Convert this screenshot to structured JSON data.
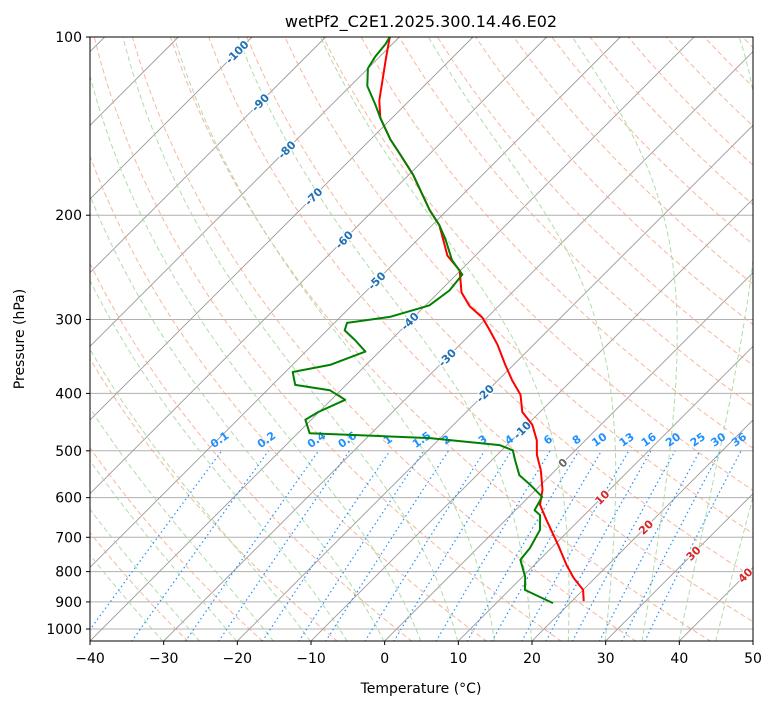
{
  "chart_data": {
    "type": "line",
    "subtype": "skew-t log-p",
    "title": "wetPf2_C2E1.2025.300.14.46.E02",
    "xlabel": "Temperature (°C)",
    "ylabel": "Pressure (hPa)",
    "xlim": [
      -40,
      50
    ],
    "ylim": [
      1050,
      100
    ],
    "x_ticks": [
      -40,
      -30,
      -20,
      -10,
      0,
      10,
      20,
      30,
      40,
      50
    ],
    "x_tick_labels": [
      "−40",
      "−30",
      "−20",
      "−10",
      "0",
      "10",
      "20",
      "30",
      "40",
      "50"
    ],
    "y_ticks": [
      100,
      200,
      300,
      400,
      500,
      600,
      700,
      800,
      900,
      1000
    ],
    "y_tick_labels": [
      "100",
      "200",
      "300",
      "400",
      "500",
      "600",
      "700",
      "800",
      "900",
      "1000"
    ],
    "grid": true,
    "isotherm_labels": [
      "-100",
      "-90",
      "-80",
      "-70",
      "-60",
      "-50",
      "-40",
      "-30",
      "-20",
      "-10",
      "0",
      "10",
      "20",
      "30",
      "40"
    ],
    "mixing_ratio_labels": [
      "0.1",
      "0.2",
      "0.4",
      "0.6",
      "1",
      "1.5",
      "2",
      "3",
      "4",
      "6",
      "8",
      "10",
      "13",
      "16",
      "20",
      "25",
      "30",
      "36"
    ],
    "colors": {
      "temperature": "#ff0000",
      "dewpoint": "#008000",
      "isotherm": "#999999",
      "dry_adiabat": "#f4a582",
      "moist_adiabat": "#a6d8a0",
      "mixing_ratio": "#1e90ff",
      "cold_label": "#1f6fb4",
      "zero_label": "#666666",
      "warm_label": "#d62728"
    },
    "series": [
      {
        "name": "temperature",
        "p": [
          897,
          859,
          820,
          780,
          721,
          654,
          617,
          582,
          539,
          508,
          480,
          452,
          430,
          402,
          380,
          358,
          331,
          313,
          298,
          285,
          270,
          248,
          234,
          208,
          196,
          171,
          158,
          149,
          137,
          128,
          118,
          108,
          100
        ],
        "T": [
          21.6,
          20.0,
          17.1,
          14.4,
          10.5,
          5.5,
          2.6,
          0.9,
          -2.0,
          -4.6,
          -6.6,
          -9.3,
          -12.4,
          -15.0,
          -18.1,
          -21.1,
          -24.9,
          -27.9,
          -30.6,
          -33.9,
          -36.9,
          -40.1,
          -43.8,
          -49.0,
          -52.4,
          -59.4,
          -63.9,
          -67.3,
          -71.6,
          -74.1,
          -76.5,
          -79.1,
          -81.3
        ]
      },
      {
        "name": "dewpoint",
        "p": [
          904,
          883,
          859,
          817,
          764,
          730,
          680,
          642,
          630,
          598,
          571,
          550,
          518,
          499,
          489,
          476,
          467,
          443,
          430,
          410,
          395,
          387,
          368,
          358,
          340,
          325,
          313,
          304,
          297,
          284,
          268,
          252,
          238,
          220,
          208,
          196,
          171,
          158,
          149,
          137,
          130,
          121,
          113,
          108,
          103,
          100
        ],
        "T": [
          17.7,
          15.1,
          12.1,
          10.4,
          7.4,
          7.1,
          6.0,
          4.0,
          2.6,
          1.8,
          -1.4,
          -4.2,
          -6.9,
          -8.5,
          -11.0,
          -21.4,
          -38.4,
          -40.8,
          -40.1,
          -38.1,
          -41.5,
          -46.9,
          -49.0,
          -44.9,
          -41.9,
          -44.9,
          -47.6,
          -48.3,
          -43.3,
          -39.5,
          -38.8,
          -39.2,
          -42.6,
          -46.2,
          -49.0,
          -52.4,
          -59.4,
          -63.9,
          -67.3,
          -71.6,
          -74.1,
          -77.7,
          -80.0,
          -80.6,
          -80.9,
          -81.3
        ]
      }
    ]
  }
}
